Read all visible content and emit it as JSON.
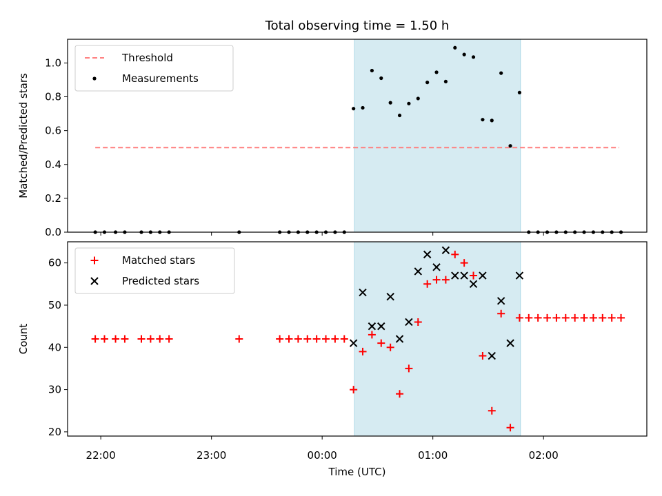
{
  "chart_data": {
    "type": "scatter",
    "title": "Total observing time = 1.50 h",
    "xlabel": "Time (UTC)",
    "x_ticks": [
      "22:00",
      "23:00",
      "00:00",
      "01:00",
      "02:00"
    ],
    "x_tick_minutes": [
      0,
      60,
      120,
      180,
      240
    ],
    "x_unit": "minutes since 22:00 UTC",
    "xlim": [
      -18,
      296
    ],
    "observing_window": [
      137.5,
      227.5
    ],
    "window_color": "#add8e6",
    "panels": [
      {
        "ylabel": "Matched/Predicted stars",
        "ylim": [
          0,
          1.14
        ],
        "y_ticks": [
          "0.0",
          "0.2",
          "0.4",
          "0.6",
          "0.8",
          "1.0"
        ],
        "y_tick_values": [
          0,
          0.2,
          0.4,
          0.6,
          0.8,
          1.0
        ],
        "legend_position": "upper left",
        "series": [
          {
            "name": "Threshold",
            "kind": "line",
            "style": "dashed",
            "color": "#ff7f7f",
            "x": [
              -3,
              281
            ],
            "y": [
              0.5,
              0.5
            ]
          },
          {
            "name": "Measurements",
            "kind": "dot",
            "color": "#000000",
            "x": [
              -3,
              2,
              8,
              13,
              22,
              27,
              32,
              37,
              75,
              97,
              102,
              107,
              112,
              117,
              122,
              127,
              132,
              137,
              142,
              147,
              152,
              157,
              162,
              167,
              172,
              177,
              182,
              187,
              192,
              197,
              202,
              207,
              212,
              217,
              222,
              227,
              232,
              237,
              242,
              247,
              252,
              257,
              262,
              267,
              272,
              277,
              282
            ],
            "y": [
              0,
              0,
              0,
              0,
              0,
              0,
              0,
              0,
              0,
              0,
              0,
              0,
              0,
              0,
              0,
              0,
              0,
              0.73,
              0.735,
              0.955,
              0.91,
              0.765,
              0.69,
              0.76,
              0.79,
              0.885,
              0.945,
              0.89,
              1.09,
              1.05,
              1.035,
              0.665,
              0.66,
              0.94,
              0.51,
              0.825,
              0,
              0,
              0,
              0,
              0,
              0,
              0,
              0,
              0,
              0,
              0
            ]
          }
        ]
      },
      {
        "ylabel": "Count",
        "ylim": [
          19,
          65
        ],
        "y_ticks": [
          "20",
          "30",
          "40",
          "50",
          "60"
        ],
        "y_tick_values": [
          20,
          30,
          40,
          50,
          60
        ],
        "legend_position": "upper left",
        "series": [
          {
            "name": "Matched stars",
            "kind": "plus",
            "color": "#ff0000",
            "x": [
              -3,
              2,
              8,
              13,
              22,
              27,
              32,
              37,
              75,
              97,
              102,
              107,
              112,
              117,
              122,
              127,
              132,
              137,
              142,
              147,
              152,
              157,
              162,
              167,
              172,
              177,
              182,
              187,
              192,
              197,
              202,
              207,
              212,
              217,
              222,
              227,
              232,
              237,
              242,
              247,
              252,
              257,
              262,
              267,
              272,
              277,
              282
            ],
            "y": [
              42,
              42,
              42,
              42,
              42,
              42,
              42,
              42,
              42,
              42,
              42,
              42,
              42,
              42,
              42,
              42,
              42,
              30,
              39,
              43,
              41,
              40,
              29,
              35,
              46,
              55,
              56,
              56,
              62,
              60,
              57,
              38,
              25,
              48,
              21,
              47,
              47,
              47,
              47,
              47,
              47,
              47,
              47,
              47,
              47,
              47,
              47
            ]
          },
          {
            "name": "Predicted stars",
            "kind": "cross",
            "color": "#000000",
            "x": [
              137,
              142,
              147,
              152,
              157,
              162,
              167,
              172,
              177,
              182,
              187,
              192,
              197,
              202,
              207,
              212,
              217,
              222,
              227
            ],
            "y": [
              41,
              53,
              45,
              45,
              52,
              42,
              46,
              58,
              62,
              59,
              63,
              57,
              57,
              55,
              57,
              38,
              51,
              41,
              57
            ]
          }
        ]
      }
    ]
  }
}
